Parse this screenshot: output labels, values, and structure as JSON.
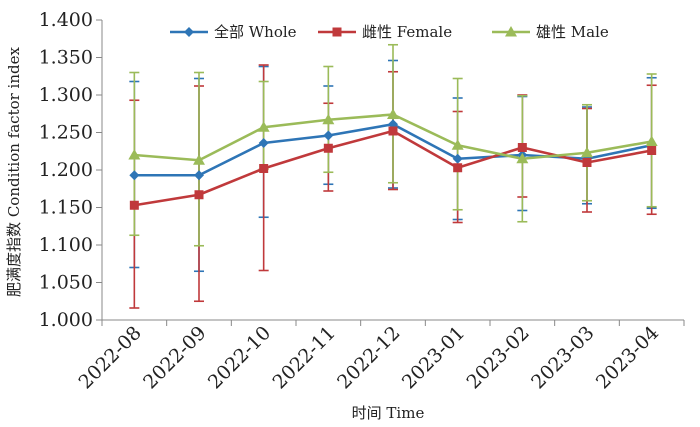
{
  "chart_data": {
    "type": "line",
    "title": "",
    "xlabel": "时间 Time",
    "ylabel": "肥满度指数 Condition factor index",
    "ylim": [
      1.0,
      1.4
    ],
    "yticks": [
      "1.000",
      "1.050",
      "1.100",
      "1.150",
      "1.200",
      "1.250",
      "1.300",
      "1.350",
      "1.400"
    ],
    "categories": [
      "2022-08",
      "2022-09",
      "2022-10",
      "2022-11",
      "2022-12",
      "2023-01",
      "2023-02",
      "2023-03",
      "2023-04"
    ],
    "grid": false,
    "legend_position": "top",
    "series": [
      {
        "name": "全部 Whole",
        "color": "#2E75B6",
        "marker": "diamond",
        "values": [
          1.193,
          1.193,
          1.236,
          1.246,
          1.261,
          1.215,
          1.22,
          1.215,
          1.233
        ],
        "err_low": [
          1.07,
          1.065,
          1.137,
          1.181,
          1.176,
          1.134,
          1.146,
          1.155,
          1.149
        ],
        "err_high": [
          1.318,
          1.322,
          1.338,
          1.312,
          1.346,
          1.296,
          1.298,
          1.284,
          1.323
        ]
      },
      {
        "name": "雌性 Female",
        "color": "#C0393B",
        "marker": "square",
        "values": [
          1.153,
          1.167,
          1.202,
          1.229,
          1.252,
          1.203,
          1.23,
          1.21,
          1.226
        ],
        "err_low": [
          1.016,
          1.025,
          1.066,
          1.172,
          1.174,
          1.13,
          1.164,
          1.144,
          1.141
        ],
        "err_high": [
          1.293,
          1.312,
          1.34,
          1.289,
          1.331,
          1.278,
          1.3,
          1.282,
          1.313
        ]
      },
      {
        "name": "雄性 Male",
        "color": "#9BBB59",
        "marker": "triangle",
        "values": [
          1.22,
          1.213,
          1.257,
          1.267,
          1.274,
          1.233,
          1.215,
          1.223,
          1.238
        ],
        "err_low": [
          1.113,
          1.099,
          1.201,
          1.197,
          1.183,
          1.147,
          1.131,
          1.159,
          1.151
        ],
        "err_high": [
          1.33,
          1.33,
          1.318,
          1.338,
          1.367,
          1.322,
          1.299,
          1.287,
          1.328
        ]
      }
    ]
  }
}
